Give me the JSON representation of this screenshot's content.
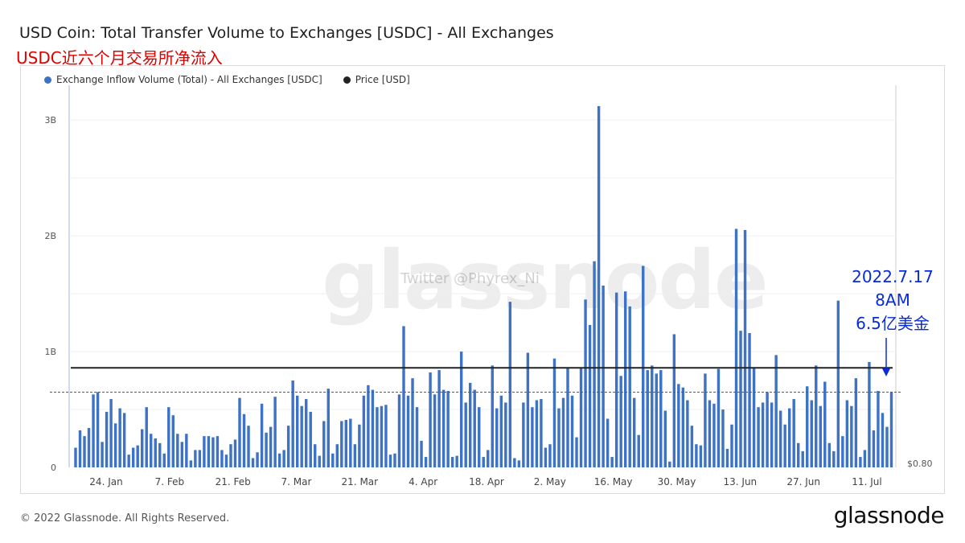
{
  "header": {
    "title": "USD Coin: Total Transfer Volume to Exchanges [USDC] - All Exchanges",
    "subtitle": "USDC近六个月交易所净流入"
  },
  "watermark": "glassnode",
  "twitter_watermark": "Twitter @Phyrex_Ni",
  "annotation": {
    "line1": "2022.7.17",
    "line2": "8AM",
    "line3": "6.5亿美金"
  },
  "footer": {
    "copyright": "© 2022 Glassnode. All Rights Reserved.",
    "logo": "glassnode"
  },
  "colors": {
    "bar": "#3d72c4",
    "price_line": "#222222",
    "reference_line": "#e02020",
    "annotation": "#0a2bd8"
  },
  "chart_data": {
    "type": "bar",
    "legend": [
      {
        "name": "Exchange Inflow Volume (Total) - All Exchanges [USDC]",
        "color": "#3d72c4"
      },
      {
        "name": "Price [USD]",
        "color": "#222222"
      }
    ],
    "y_ticks": [
      "0",
      "1B",
      "2B",
      "3B"
    ],
    "y_right_ticks": [
      "$0.80"
    ],
    "ylim": [
      0,
      3.3
    ],
    "x_ticks": [
      "24. Jan",
      "7. Feb",
      "21. Feb",
      "7. Mar",
      "21. Mar",
      "4. Apr",
      "18. Apr",
      "2. May",
      "16. May",
      "30. May",
      "13. Jun",
      "27. Jun",
      "11. Jul"
    ],
    "reference_line_value": 0.65,
    "price_line_value": 0.86,
    "series": [
      {
        "name": "Exchange Inflow Volume (Total) - All Exchanges [USDC]",
        "unit": "billions USD",
        "values": [
          0.17,
          0.32,
          0.27,
          0.34,
          0.63,
          0.65,
          0.22,
          0.48,
          0.59,
          0.38,
          0.51,
          0.47,
          0.11,
          0.17,
          0.19,
          0.33,
          0.52,
          0.29,
          0.25,
          0.21,
          0.12,
          0.52,
          0.45,
          0.29,
          0.22,
          0.29,
          0.06,
          0.15,
          0.15,
          0.27,
          0.27,
          0.26,
          0.27,
          0.15,
          0.11,
          0.2,
          0.24,
          0.6,
          0.46,
          0.36,
          0.08,
          0.13,
          0.55,
          0.3,
          0.35,
          0.61,
          0.12,
          0.15,
          0.36,
          0.75,
          0.62,
          0.53,
          0.59,
          0.48,
          0.2,
          0.1,
          0.4,
          0.68,
          0.12,
          0.2,
          0.4,
          0.41,
          0.42,
          0.2,
          0.37,
          0.62,
          0.71,
          0.67,
          0.52,
          0.53,
          0.54,
          0.11,
          0.12,
          0.63,
          1.22,
          0.62,
          0.77,
          0.52,
          0.23,
          0.09,
          0.82,
          0.63,
          0.84,
          0.67,
          0.66,
          0.09,
          0.1,
          1.0,
          0.56,
          0.73,
          0.67,
          0.52,
          0.09,
          0.15,
          0.88,
          0.51,
          0.62,
          0.56,
          1.43,
          0.08,
          0.06,
          0.56,
          0.99,
          0.52,
          0.58,
          0.59,
          0.17,
          0.2,
          0.94,
          0.51,
          0.6,
          0.86,
          0.62,
          0.26,
          0.86,
          1.45,
          1.23,
          1.78,
          3.12,
          1.57,
          0.42,
          0.09,
          1.51,
          0.79,
          1.52,
          1.39,
          0.6,
          0.28,
          1.74,
          0.84,
          0.88,
          0.81,
          0.84,
          0.49,
          0.05,
          1.15,
          0.72,
          0.69,
          0.58,
          0.36,
          0.2,
          0.19,
          0.81,
          0.58,
          0.55,
          0.85,
          0.5,
          0.16,
          0.37,
          2.06,
          1.18,
          2.05,
          1.16,
          0.86,
          0.52,
          0.56,
          0.65,
          0.56,
          0.97,
          0.49,
          0.37,
          0.51,
          0.59,
          0.21,
          0.14,
          0.7,
          0.58,
          0.88,
          0.53,
          0.74,
          0.21,
          0.14,
          1.44,
          0.27,
          0.58,
          0.53,
          0.77,
          0.09,
          0.15,
          0.91,
          0.32,
          0.66,
          0.47,
          0.35,
          0.65
        ]
      }
    ]
  }
}
